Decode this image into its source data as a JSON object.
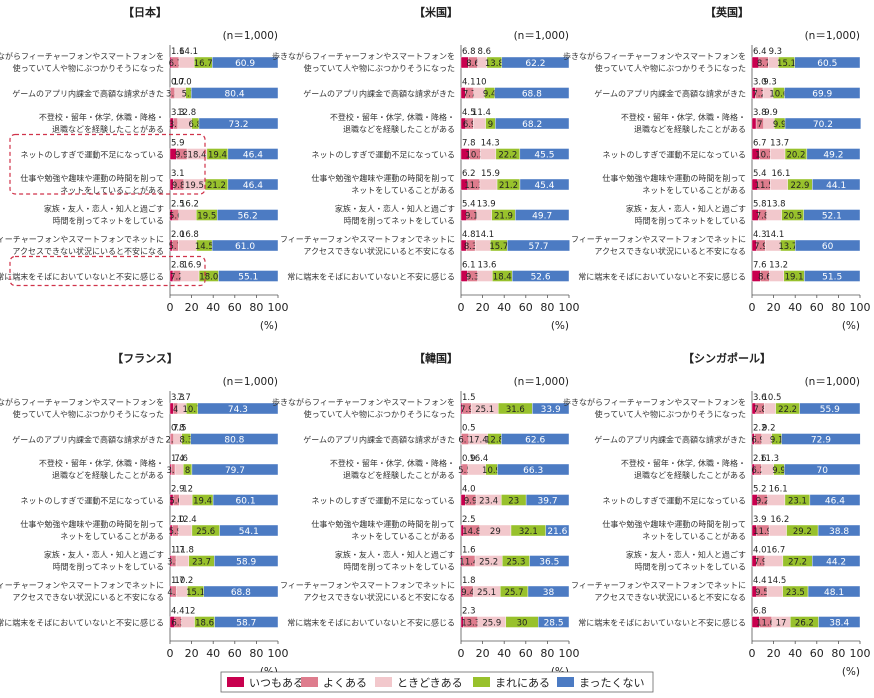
{
  "categories": [
    "歩きながらフィーチャーフォンやスマートフォンを|使っていて人や物にぶつかりそうになった",
    "ゲームのアプリ内課金で高額な請求がきた",
    "不登校・留年・休学, 休職・降格・|退職などを経験したことがある",
    "ネットのしすぎで運動不足になっている",
    "仕事や勉強や趣味や運動の時間を削って|ネットをしていることがある",
    "家族・友人・恋人・知人と過ごす|時間を削ってネットをしている",
    "フィーチャーフォンやスマートフォンでネットに|アクセスできない状況にいると不安になる",
    "常に端末をそばにおいていないと不安に感じる"
  ],
  "legend": [
    "いつもある",
    "よくある",
    "ときどきある",
    "まれにある",
    "まったくない"
  ],
  "colors": [
    "#c8004e",
    "#de7c8d",
    "#f2c8cc",
    "#98c12c",
    "#4c7bc3"
  ],
  "axis": {
    "ticks": [
      "0",
      "20",
      "40",
      "60",
      "80",
      "100"
    ],
    "unit": "(%)"
  },
  "chart_data": [
    {
      "type": "bar",
      "stacked": true,
      "orientation": "horizontal",
      "title": "【日本】",
      "n_label": "(n＝1,000)",
      "xlim": [
        0,
        100
      ],
      "series": [
        {
          "name": "いつもある",
          "values": [
            1.6,
            0.7,
            3.3,
            5.9,
            3.1,
            2.5,
            2.0,
            2.8
          ]
        },
        {
          "name": "よくある",
          "values": [
            6.7,
            3.8,
            3.9,
            9.9,
            9.8,
            5.6,
            5.7,
            7.2
          ]
        },
        {
          "name": "ときどきある",
          "values": [
            14.1,
            10.0,
            12.8,
            18.4,
            19.5,
            16.2,
            16.8,
            16.9
          ]
        },
        {
          "name": "まれにある",
          "values": [
            16.7,
            5.1,
            6.8,
            19.4,
            21.2,
            19.5,
            14.5,
            18.0
          ]
        },
        {
          "name": "まったくない",
          "values": [
            60.9,
            80.4,
            73.2,
            46.4,
            46.4,
            56.2,
            61.0,
            55.1
          ]
        }
      ],
      "labels": [
        [
          "1.6",
          "6.7",
          "14.1",
          "16.7",
          "60.9"
        ],
        [
          "0.7",
          "3.8",
          "10.0",
          "5.1",
          "80.4"
        ],
        [
          "3.3",
          "3.9",
          "12.8",
          "6.8",
          "73.2"
        ],
        [
          "5.9",
          "9.9",
          "18.4",
          "19.4",
          "46.4"
        ],
        [
          "3.1",
          "9.8",
          "19.5",
          "21.2",
          "46.4"
        ],
        [
          "2.5",
          "5.6",
          "16.2",
          "19.5",
          "56.2"
        ],
        [
          "2.0",
          "5.7",
          "16.8",
          "14.5",
          "61.0"
        ],
        [
          "2.8",
          "7.2",
          "16.9",
          "18.0",
          "55.1"
        ]
      ],
      "highlight": [
        3,
        4,
        7
      ]
    },
    {
      "type": "bar",
      "stacked": true,
      "orientation": "horizontal",
      "title": "【米国】",
      "n_label": "(n＝1,000)",
      "xlim": [
        0,
        100
      ],
      "series": [
        {
          "name": "いつもある",
          "values": [
            6.8,
            4.1,
            4.5,
            7.8,
            6.2,
            5.4,
            4.8,
            6.1
          ]
        },
        {
          "name": "よくある",
          "values": [
            8.6,
            7.7,
            6.9,
            10.2,
            11.3,
            9.1,
            8.3,
            9.3
          ]
        },
        {
          "name": "ときどきある",
          "values": [
            8.6,
            10.0,
            11.4,
            14.3,
            15.9,
            13.9,
            14.1,
            13.6
          ]
        },
        {
          "name": "まれにある",
          "values": [
            13.8,
            9.4,
            9.0,
            22.2,
            21.2,
            21.9,
            15.7,
            18.4
          ]
        },
        {
          "name": "まったくない",
          "values": [
            62.2,
            68.8,
            68.2,
            45.5,
            45.4,
            49.7,
            57.7,
            52.6
          ]
        }
      ],
      "labels": [
        [
          "6.8",
          "8.6",
          "8.6",
          "13.8",
          "62.2"
        ],
        [
          "4.1",
          "7.7",
          "10",
          "9.4",
          "68.8"
        ],
        [
          "4.5",
          "6.9",
          "11.4",
          "9",
          "68.2"
        ],
        [
          "7.8",
          "10.2",
          "14.3",
          "22.2",
          "45.5"
        ],
        [
          "6.2",
          "11.3",
          "15.9",
          "21.2",
          "45.4"
        ],
        [
          "5.4",
          "9.1",
          "13.9",
          "21.9",
          "49.7"
        ],
        [
          "4.8",
          "8.3",
          "14.1",
          "15.7",
          "57.7"
        ],
        [
          "6.1",
          "9.3",
          "13.6",
          "18.4",
          "52.6"
        ]
      ]
    },
    {
      "type": "bar",
      "stacked": true,
      "orientation": "horizontal",
      "title": "【英国】",
      "n_label": "(n＝1,000)",
      "xlim": [
        0,
        100
      ],
      "series": [
        {
          "name": "いつもある",
          "values": [
            6.4,
            3.0,
            3.8,
            6.7,
            5.4,
            5.8,
            4.3,
            7.6
          ]
        },
        {
          "name": "よくある",
          "values": [
            8.7,
            7.2,
            7.0,
            10.2,
            11.5,
            7.8,
            7.9,
            8.6
          ]
        },
        {
          "name": "ときどきある",
          "values": [
            9.3,
            9.3,
            9.9,
            13.7,
            16.1,
            13.8,
            14.1,
            13.2
          ]
        },
        {
          "name": "まれにある",
          "values": [
            15.1,
            10.6,
            9.9,
            20.2,
            22.9,
            20.5,
            13.7,
            19.1
          ]
        },
        {
          "name": "まったくない",
          "values": [
            60.5,
            69.9,
            70.2,
            49.2,
            44.1,
            52.1,
            60.0,
            51.5
          ]
        }
      ],
      "labels": [
        [
          "6.4",
          "8.7",
          "9.3",
          "15.1",
          "60.5"
        ],
        [
          "3.0",
          "7.2",
          "9.3",
          "10.6",
          "69.9"
        ],
        [
          "3.8",
          "7",
          "9.9",
          "9.9",
          "70.2"
        ],
        [
          "6.7",
          "10.2",
          "13.7",
          "20.2",
          "49.2"
        ],
        [
          "5.4",
          "11.5",
          "16.1",
          "22.9",
          "44.1"
        ],
        [
          "5.8",
          "7.8",
          "13.8",
          "20.5",
          "52.1"
        ],
        [
          "4.3",
          "7.9",
          "14.1",
          "13.7",
          "60"
        ],
        [
          "7.6",
          "8.6",
          "13.2",
          "19.1",
          "51.5"
        ]
      ]
    },
    {
      "type": "bar",
      "stacked": true,
      "orientation": "horizontal",
      "title": "【フランス】",
      "n_label": "(n＝1,000)",
      "xlim": [
        0,
        100
      ],
      "series": [
        {
          "name": "いつもある",
          "values": [
            3.3,
            0.8,
            1.4,
            2.9,
            2.0,
            1.7,
            1.7,
            4.4
          ]
        },
        {
          "name": "よくある",
          "values": [
            4.0,
            2.6,
            3.3,
            5.6,
            5.9,
            3.9,
            4.2,
            6.3
          ]
        },
        {
          "name": "ときどきある",
          "values": [
            7.7,
            7.5,
            7.6,
            12.0,
            12.4,
            11.8,
            10.2,
            12.0
          ]
        },
        {
          "name": "まれにある",
          "values": [
            10.7,
            8.3,
            8.0,
            19.4,
            25.6,
            23.7,
            15.1,
            18.6
          ]
        },
        {
          "name": "まったくない",
          "values": [
            74.3,
            80.8,
            79.7,
            60.1,
            54.1,
            58.9,
            68.8,
            58.7
          ]
        }
      ],
      "labels": [
        [
          "3.3",
          "4",
          "7.7",
          "10.7",
          "74.3"
        ],
        [
          "0.8",
          "2.6",
          "7.5",
          "8.3",
          "80.8"
        ],
        [
          "1.4",
          "3.3",
          "7.6",
          "8",
          "79.7"
        ],
        [
          "2.9",
          "5.6",
          "12",
          "19.4",
          "60.1"
        ],
        [
          "2.0",
          "5.9",
          "12.4",
          "25.6",
          "54.1"
        ],
        [
          "1.7",
          "3.9",
          "11.8",
          "23.7",
          "58.9"
        ],
        [
          "1.7",
          "4.2",
          "10.2",
          "15.1",
          "68.8"
        ],
        [
          "4.4",
          "6.3",
          "12",
          "18.6",
          "58.7"
        ]
      ]
    },
    {
      "type": "bar",
      "stacked": true,
      "orientation": "horizontal",
      "title": "【韓国】",
      "n_label": "(n＝1,000)",
      "xlim": [
        0,
        100
      ],
      "series": [
        {
          "name": "いつもある",
          "values": [
            1.5,
            0.5,
            0.9,
            4.0,
            2.5,
            1.6,
            1.8,
            2.3
          ]
        },
        {
          "name": "よくある",
          "values": [
            7.9,
            6.7,
            5.5,
            9.9,
            14.8,
            11.4,
            9.4,
            13.3
          ]
        },
        {
          "name": "ときどきある",
          "values": [
            25.1,
            17.4,
            16.4,
            23.4,
            29.0,
            25.2,
            25.1,
            25.9
          ]
        },
        {
          "name": "まれにある",
          "values": [
            31.6,
            12.8,
            10.9,
            23.0,
            32.1,
            25.3,
            25.7,
            30.0
          ]
        },
        {
          "name": "まったくない",
          "values": [
            33.9,
            62.6,
            66.3,
            39.7,
            21.6,
            36.5,
            38.0,
            28.5
          ]
        }
      ],
      "labels": [
        [
          "1.5",
          "7.9",
          "25.1",
          "31.6",
          "33.9"
        ],
        [
          "0.5",
          "6.7",
          "17.4",
          "12.8",
          "62.6"
        ],
        [
          "0.9",
          "5.5",
          "16.4",
          "10.9",
          "66.3"
        ],
        [
          "4.0",
          "9.9",
          "23.4",
          "23",
          "39.7"
        ],
        [
          "2.5",
          "14.8",
          "29",
          "32.1",
          "21.6"
        ],
        [
          "1.6",
          "11.4",
          "25.2",
          "25.3",
          "36.5"
        ],
        [
          "1.8",
          "9.4",
          "25.1",
          "25.7",
          "38"
        ],
        [
          "2.3",
          "13.3",
          "25.9",
          "30",
          "28.5"
        ]
      ]
    },
    {
      "type": "bar",
      "stacked": true,
      "orientation": "horizontal",
      "title": "【シンガポール】",
      "n_label": "(n＝1,000)",
      "xlim": [
        0,
        100
      ],
      "series": [
        {
          "name": "いつもある",
          "values": [
            3.6,
            2.2,
            2.6,
            5.2,
            3.9,
            4.0,
            4.4,
            6.8
          ]
        },
        {
          "name": "よくある",
          "values": [
            7.8,
            6.9,
            6.2,
            9.2,
            11.9,
            7.9,
            9.5,
            11.6
          ]
        },
        {
          "name": "ときどきある",
          "values": [
            10.5,
            9.2,
            11.3,
            16.1,
            16.2,
            16.7,
            14.5,
            17.0
          ]
        },
        {
          "name": "まれにある",
          "values": [
            22.2,
            9.1,
            9.9,
            23.1,
            29.2,
            27.2,
            23.5,
            26.2
          ]
        },
        {
          "name": "まったくない",
          "values": [
            55.9,
            72.9,
            70.0,
            46.4,
            38.8,
            44.2,
            48.1,
            38.4
          ]
        }
      ],
      "labels": [
        [
          "3.6",
          "7.8",
          "10.5",
          "22.2",
          "55.9"
        ],
        [
          "2.2",
          "6.9",
          "9.2",
          "9.1",
          "72.9"
        ],
        [
          "2.6",
          "6.2",
          "11.3",
          "9.9",
          "70"
        ],
        [
          "5.2",
          "9.2",
          "16.1",
          "23.1",
          "46.4"
        ],
        [
          "3.9",
          "11.9",
          "16.2",
          "29.2",
          "38.8"
        ],
        [
          "4.0",
          "7.9",
          "16.7",
          "27.2",
          "44.2"
        ],
        [
          "4.4",
          "9.5",
          "14.5",
          "23.5",
          "48.1"
        ],
        [
          "6.8",
          "11.6",
          "17",
          "26.2",
          "38.4"
        ]
      ]
    }
  ]
}
